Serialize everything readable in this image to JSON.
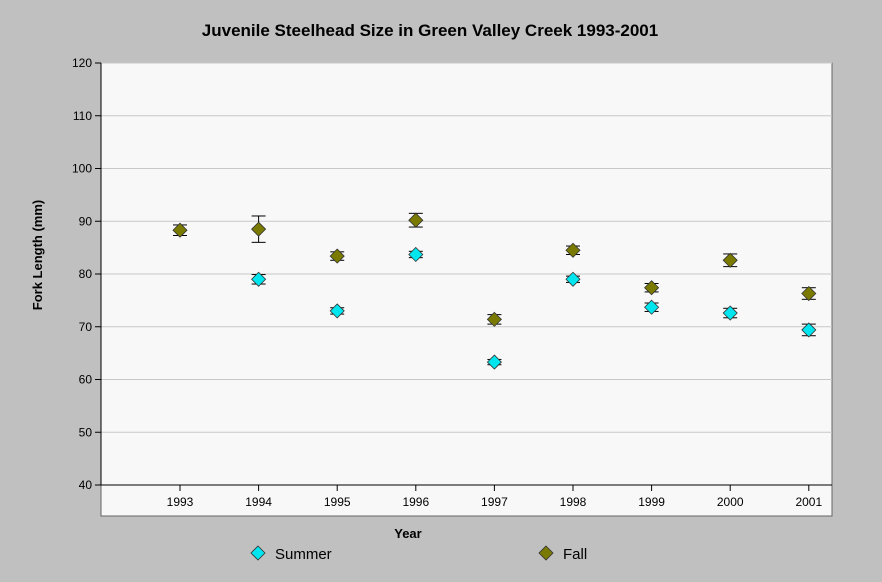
{
  "chart_data": {
    "type": "scatter",
    "title": "Juvenile Steelhead Size in Green Valley Creek 1993-2001",
    "xlabel": "Year",
    "ylabel": "Fork Length (mm)",
    "categories": [
      "1993",
      "1994",
      "1995",
      "1996",
      "1997",
      "1998",
      "1999",
      "2000",
      "2001"
    ],
    "ylim": [
      40,
      120
    ],
    "yticks": [
      40,
      50,
      60,
      70,
      80,
      90,
      100,
      110,
      120
    ],
    "grid": true,
    "legend_position": "bottom",
    "series": [
      {
        "name": "Summer",
        "color": "#00e5ee",
        "marker": "diamond",
        "values": [
          null,
          79.0,
          73.0,
          83.7,
          63.3,
          79.0,
          73.7,
          72.6,
          69.4
        ],
        "errors": [
          null,
          0.9,
          0.6,
          0.6,
          0.5,
          0.6,
          0.8,
          0.9,
          1.1
        ]
      },
      {
        "name": "Fall",
        "color": "#7a7a00",
        "marker": "diamond",
        "values": [
          88.3,
          88.5,
          83.4,
          90.2,
          71.4,
          84.5,
          77.4,
          82.6,
          76.3
        ],
        "errors": [
          1.0,
          2.5,
          0.8,
          1.3,
          0.9,
          0.8,
          0.8,
          1.2,
          1.1
        ]
      }
    ]
  }
}
